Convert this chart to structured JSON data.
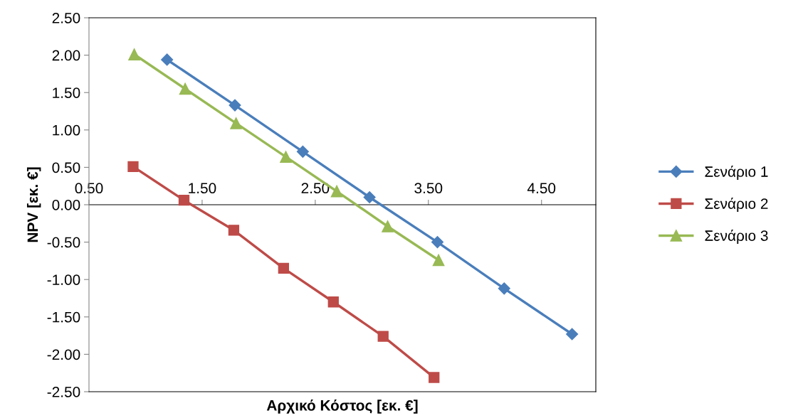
{
  "chart_data": {
    "type": "line",
    "xlabel": "Αρχικό Κόστος [εκ. €]",
    "ylabel": "NPV [εκ. €]",
    "xlim": [
      0.5,
      4.98
    ],
    "xticks": [
      {
        "value": 0.5,
        "label": "0.50"
      },
      {
        "value": 1.5,
        "label": "1.50"
      },
      {
        "value": 2.5,
        "label": "2.50"
      },
      {
        "value": 3.5,
        "label": "3.50"
      },
      {
        "value": 4.5,
        "label": "4.50"
      }
    ],
    "ylim": [
      -2.5,
      2.5
    ],
    "yticks": [
      {
        "value": -2.5,
        "label": "-2.50"
      },
      {
        "value": -2.0,
        "label": "-2.00"
      },
      {
        "value": -1.5,
        "label": "-1.50"
      },
      {
        "value": -1.0,
        "label": "-1.00"
      },
      {
        "value": -0.5,
        "label": "-0.50"
      },
      {
        "value": 0.0,
        "label": "0.00"
      },
      {
        "value": 0.5,
        "label": "0.50"
      },
      {
        "value": 1.0,
        "label": "1.00"
      },
      {
        "value": 1.5,
        "label": "1.50"
      },
      {
        "value": 2.0,
        "label": "2.00"
      },
      {
        "value": 2.5,
        "label": "2.50"
      }
    ],
    "grid": false,
    "legend": "right",
    "series": [
      {
        "name": "Σενάριο 1",
        "color": "#4a7ebb",
        "marker": "diamond",
        "x": [
          1.19,
          1.79,
          2.39,
          2.98,
          3.58,
          4.17,
          4.77
        ],
        "values": [
          1.94,
          1.33,
          0.71,
          0.1,
          -0.5,
          -1.12,
          -1.73
        ]
      },
      {
        "name": "Σενάριο 2",
        "color": "#be4b48",
        "marker": "square",
        "x": [
          0.89,
          1.34,
          1.78,
          2.22,
          2.66,
          3.1,
          3.55
        ],
        "values": [
          0.51,
          0.06,
          -0.34,
          -0.85,
          -1.3,
          -1.76,
          -2.31
        ]
      },
      {
        "name": "Σενάριο 3",
        "color": "#98b954",
        "marker": "triangle",
        "x": [
          0.9,
          1.35,
          1.8,
          2.24,
          2.69,
          3.14,
          3.59
        ],
        "values": [
          2.01,
          1.55,
          1.09,
          0.64,
          0.18,
          -0.29,
          -0.74
        ]
      }
    ]
  }
}
